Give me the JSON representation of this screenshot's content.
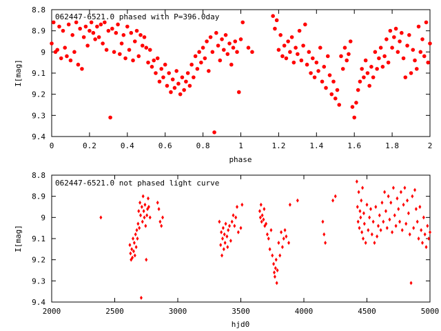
{
  "chart_data": [
    {
      "type": "scatter",
      "title": "062447-6521.0 phased with P=396.0day",
      "xlabel": "phase",
      "ylabel": "I[mag]",
      "xlim": [
        0,
        2
      ],
      "ylim": [
        9.4,
        8.8
      ],
      "y_inverted": true,
      "x_ticks": [
        "0",
        "0.2",
        "0.4",
        "0.6",
        "0.8",
        "1",
        "1.2",
        "1.4",
        "1.6",
        "1.8",
        "2"
      ],
      "y_ticks": [
        "8.8",
        "8.9",
        "9",
        "9.1",
        "9.2",
        "9.3",
        "9.4"
      ],
      "marker_color": "#ff0000",
      "grid": false,
      "points": [
        [
          0.0,
          8.96
        ],
        [
          0.01,
          8.86
        ],
        [
          0.02,
          9.0
        ],
        [
          0.03,
          8.99
        ],
        [
          0.04,
          8.88
        ],
        [
          0.05,
          9.03
        ],
        [
          0.06,
          8.9
        ],
        [
          0.07,
          8.98
        ],
        [
          0.08,
          9.02
        ],
        [
          0.09,
          8.87
        ],
        [
          0.1,
          9.04
        ],
        [
          0.11,
          8.92
        ],
        [
          0.12,
          9.0
        ],
        [
          0.13,
          8.86
        ],
        [
          0.14,
          9.06
        ],
        [
          0.15,
          8.89
        ],
        [
          0.16,
          9.08
        ],
        [
          0.17,
          8.93
        ],
        [
          0.18,
          8.88
        ],
        [
          0.19,
          8.97
        ],
        [
          0.2,
          8.9
        ],
        [
          0.21,
          8.86
        ],
        [
          0.22,
          8.91
        ],
        [
          0.23,
          8.94
        ],
        [
          0.24,
          8.88
        ],
        [
          0.25,
          8.93
        ],
        [
          0.26,
          8.87
        ],
        [
          0.27,
          8.96
        ],
        [
          0.28,
          8.86
        ],
        [
          0.29,
          8.99
        ],
        [
          0.3,
          8.9
        ],
        [
          0.31,
          9.31
        ],
        [
          0.32,
          8.89
        ],
        [
          0.33,
          9.0
        ],
        [
          0.34,
          8.91
        ],
        [
          0.35,
          8.87
        ],
        [
          0.36,
          9.01
        ],
        [
          0.37,
          8.96
        ],
        [
          0.38,
          8.92
        ],
        [
          0.39,
          9.03
        ],
        [
          0.4,
          8.88
        ],
        [
          0.41,
          8.99
        ],
        [
          0.42,
          8.91
        ],
        [
          0.43,
          9.04
        ],
        [
          0.44,
          8.95
        ],
        [
          0.45,
          8.9
        ],
        [
          0.46,
          9.02
        ],
        [
          0.47,
          8.92
        ],
        [
          0.48,
          8.97
        ],
        [
          0.49,
          8.93
        ],
        [
          0.5,
          8.98
        ],
        [
          0.51,
          9.05
        ],
        [
          0.52,
          8.99
        ],
        [
          0.53,
          9.07
        ],
        [
          0.54,
          9.04
        ],
        [
          0.55,
          9.1
        ],
        [
          0.56,
          9.03
        ],
        [
          0.57,
          9.14
        ],
        [
          0.58,
          9.08
        ],
        [
          0.59,
          9.12
        ],
        [
          0.6,
          9.06
        ],
        [
          0.61,
          9.16
        ],
        [
          0.62,
          9.1
        ],
        [
          0.63,
          9.19
        ],
        [
          0.64,
          9.13
        ],
        [
          0.65,
          9.17
        ],
        [
          0.66,
          9.09
        ],
        [
          0.67,
          9.15
        ],
        [
          0.68,
          9.2
        ],
        [
          0.69,
          9.12
        ],
        [
          0.7,
          9.18
        ],
        [
          0.71,
          9.14
        ],
        [
          0.72,
          9.1
        ],
        [
          0.73,
          9.16
        ],
        [
          0.74,
          9.06
        ],
        [
          0.75,
          9.12
        ],
        [
          0.76,
          9.02
        ],
        [
          0.77,
          9.08
        ],
        [
          0.78,
          9.0
        ],
        [
          0.79,
          9.05
        ],
        [
          0.8,
          8.98
        ],
        [
          0.81,
          9.03
        ],
        [
          0.82,
          8.95
        ],
        [
          0.83,
          9.09
        ],
        [
          0.84,
          8.93
        ],
        [
          0.85,
          9.0
        ],
        [
          0.86,
          9.38
        ],
        [
          0.87,
          8.91
        ],
        [
          0.88,
          8.97
        ],
        [
          0.89,
          9.04
        ],
        [
          0.9,
          8.94
        ],
        [
          0.91,
          8.99
        ],
        [
          0.92,
          8.92
        ],
        [
          0.93,
          9.01
        ],
        [
          0.94,
          8.96
        ],
        [
          0.95,
          9.06
        ],
        [
          0.96,
          8.98
        ],
        [
          0.97,
          8.95
        ],
        [
          0.98,
          9.0
        ],
        [
          0.99,
          9.19
        ],
        [
          1.0,
          8.94
        ],
        [
          1.01,
          8.86
        ],
        [
          1.04,
          8.98
        ],
        [
          1.06,
          9.0
        ],
        [
          1.17,
          8.83
        ],
        [
          1.18,
          8.89
        ],
        [
          1.19,
          8.85
        ],
        [
          1.2,
          8.99
        ],
        [
          1.21,
          8.92
        ],
        [
          1.22,
          9.02
        ],
        [
          1.23,
          8.97
        ],
        [
          1.24,
          9.03
        ],
        [
          1.25,
          8.95
        ],
        [
          1.26,
          9.0
        ],
        [
          1.27,
          8.93
        ],
        [
          1.28,
          9.05
        ],
        [
          1.29,
          8.98
        ],
        [
          1.3,
          9.01
        ],
        [
          1.31,
          8.9
        ],
        [
          1.32,
          9.04
        ],
        [
          1.33,
          8.97
        ],
        [
          1.34,
          8.87
        ],
        [
          1.35,
          9.06
        ],
        [
          1.36,
          9.0
        ],
        [
          1.37,
          9.1
        ],
        [
          1.38,
          9.03
        ],
        [
          1.39,
          9.12
        ],
        [
          1.4,
          9.05
        ],
        [
          1.41,
          9.09
        ],
        [
          1.42,
          8.98
        ],
        [
          1.43,
          9.14
        ],
        [
          1.44,
          9.07
        ],
        [
          1.45,
          9.17
        ],
        [
          1.46,
          9.02
        ],
        [
          1.47,
          9.11
        ],
        [
          1.48,
          9.2
        ],
        [
          1.49,
          9.14
        ],
        [
          1.5,
          9.22
        ],
        [
          1.51,
          9.18
        ],
        [
          1.52,
          9.25
        ],
        [
          1.53,
          9.02
        ],
        [
          1.54,
          9.08
        ],
        [
          1.55,
          8.98
        ],
        [
          1.56,
          9.04
        ],
        [
          1.57,
          9.01
        ],
        [
          1.58,
          8.95
        ],
        [
          1.59,
          9.26
        ],
        [
          1.6,
          9.31
        ],
        [
          1.61,
          9.24
        ],
        [
          1.62,
          9.18
        ],
        [
          1.63,
          9.14
        ],
        [
          1.64,
          9.08
        ],
        [
          1.65,
          9.12
        ],
        [
          1.66,
          9.04
        ],
        [
          1.67,
          9.1
        ],
        [
          1.68,
          9.16
        ],
        [
          1.69,
          9.07
        ],
        [
          1.7,
          9.12
        ],
        [
          1.71,
          9.0
        ],
        [
          1.72,
          9.08
        ],
        [
          1.73,
          9.03
        ],
        [
          1.74,
          8.98
        ],
        [
          1.75,
          9.07
        ],
        [
          1.76,
          9.02
        ],
        [
          1.77,
          8.94
        ],
        [
          1.78,
          9.05
        ],
        [
          1.79,
          8.9
        ],
        [
          1.8,
          8.98
        ],
        [
          1.81,
          8.93
        ],
        [
          1.82,
          8.89
        ],
        [
          1.83,
          9.0
        ],
        [
          1.84,
          8.95
        ],
        [
          1.85,
          8.91
        ],
        [
          1.86,
          9.03
        ],
        [
          1.87,
          9.12
        ],
        [
          1.88,
          8.97
        ],
        [
          1.89,
          8.92
        ],
        [
          1.9,
          9.1
        ],
        [
          1.91,
          8.99
        ],
        [
          1.92,
          9.04
        ],
        [
          1.93,
          9.08
        ],
        [
          1.94,
          8.88
        ],
        [
          1.95,
          9.0
        ],
        [
          1.96,
          8.94
        ],
        [
          1.97,
          9.02
        ],
        [
          1.98,
          8.86
        ],
        [
          1.99,
          9.05
        ],
        [
          2.0,
          8.96
        ]
      ]
    },
    {
      "type": "scatter",
      "title": "062447-6521.0 not phased light curve",
      "xlabel": "hjd0",
      "ylabel": "I[mag]",
      "xlim": [
        2000,
        5000
      ],
      "ylim": [
        9.4,
        8.8
      ],
      "y_inverted": true,
      "x_ticks": [
        "2000",
        "2500",
        "3000",
        "3500",
        "4000",
        "4500",
        "5000"
      ],
      "y_ticks": [
        "8.8",
        "8.9",
        "9",
        "9.1",
        "9.2",
        "9.3",
        "9.4"
      ],
      "marker_color": "#ff0000",
      "grid": false,
      "points": [
        [
          2390,
          9.0
        ],
        [
          2620,
          9.13
        ],
        [
          2625,
          9.17
        ],
        [
          2630,
          9.2
        ],
        [
          2635,
          9.15
        ],
        [
          2640,
          9.19
        ],
        [
          2645,
          9.1
        ],
        [
          2650,
          9.16
        ],
        [
          2655,
          9.12
        ],
        [
          2660,
          9.18
        ],
        [
          2665,
          9.08
        ],
        [
          2670,
          9.14
        ],
        [
          2675,
          9.06
        ],
        [
          2680,
          9.1
        ],
        [
          2685,
          9.03
        ],
        [
          2690,
          8.97
        ],
        [
          2695,
          9.05
        ],
        [
          2700,
          8.93
        ],
        [
          2705,
          8.99
        ],
        [
          2710,
          9.38
        ],
        [
          2715,
          8.95
        ],
        [
          2720,
          9.02
        ],
        [
          2725,
          8.9
        ],
        [
          2730,
          8.97
        ],
        [
          2735,
          9.0
        ],
        [
          2740,
          8.94
        ],
        [
          2745,
          9.04
        ],
        [
          2750,
          9.2
        ],
        [
          2755,
          8.99
        ],
        [
          2760,
          8.96
        ],
        [
          2765,
          8.91
        ],
        [
          2770,
          8.95
        ],
        [
          2780,
          9.0
        ],
        [
          2840,
          8.93
        ],
        [
          2850,
          8.96
        ],
        [
          2860,
          9.02
        ],
        [
          2870,
          9.04
        ],
        [
          2880,
          9.0
        ],
        [
          3330,
          9.02
        ],
        [
          3340,
          9.13
        ],
        [
          3345,
          9.07
        ],
        [
          3350,
          9.18
        ],
        [
          3355,
          9.1
        ],
        [
          3360,
          9.05
        ],
        [
          3365,
          9.15
        ],
        [
          3370,
          9.08
        ],
        [
          3375,
          9.12
        ],
        [
          3380,
          9.03
        ],
        [
          3390,
          9.09
        ],
        [
          3395,
          9.14
        ],
        [
          3400,
          9.06
        ],
        [
          3410,
          9.04
        ],
        [
          3420,
          9.11
        ],
        [
          3430,
          9.02
        ],
        [
          3440,
          8.99
        ],
        [
          3450,
          9.04
        ],
        [
          3460,
          9.0
        ],
        [
          3470,
          8.95
        ],
        [
          3480,
          9.07
        ],
        [
          3500,
          9.05
        ],
        [
          3510,
          8.94
        ],
        [
          3650,
          8.97
        ],
        [
          3655,
          9.0
        ],
        [
          3660,
          8.94
        ],
        [
          3665,
          9.02
        ],
        [
          3670,
          8.99
        ],
        [
          3680,
          9.01
        ],
        [
          3685,
          8.96
        ],
        [
          3690,
          9.04
        ],
        [
          3700,
          9.03
        ],
        [
          3710,
          9.08
        ],
        [
          3720,
          9.1
        ],
        [
          3730,
          9.15
        ],
        [
          3740,
          9.06
        ],
        [
          3750,
          9.18
        ],
        [
          3760,
          9.22
        ],
        [
          3765,
          9.26
        ],
        [
          3770,
          9.28
        ],
        [
          3775,
          9.24
        ],
        [
          3780,
          9.2
        ],
        [
          3785,
          9.31
        ],
        [
          3790,
          9.25
        ],
        [
          3800,
          9.12
        ],
        [
          3810,
          9.18
        ],
        [
          3820,
          9.07
        ],
        [
          3830,
          9.14
        ],
        [
          3840,
          9.1
        ],
        [
          3850,
          9.06
        ],
        [
          3860,
          9.09
        ],
        [
          3880,
          9.12
        ],
        [
          3890,
          8.94
        ],
        [
          3950,
          8.92
        ],
        [
          4150,
          9.02
        ],
        [
          4160,
          9.08
        ],
        [
          4170,
          9.12
        ],
        [
          4230,
          8.92
        ],
        [
          4250,
          8.9
        ],
        [
          4420,
          8.83
        ],
        [
          4425,
          8.95
        ],
        [
          4430,
          9.02
        ],
        [
          4435,
          8.88
        ],
        [
          4440,
          9.05
        ],
        [
          4445,
          8.97
        ],
        [
          4450,
          9.0
        ],
        [
          4455,
          8.92
        ],
        [
          4460,
          9.07
        ],
        [
          4465,
          8.86
        ],
        [
          4470,
          9.1
        ],
        [
          4475,
          8.98
        ],
        [
          4480,
          9.03
        ],
        [
          4490,
          9.12
        ],
        [
          4500,
          8.94
        ],
        [
          4510,
          9.06
        ],
        [
          4520,
          9.0
        ],
        [
          4530,
          8.96
        ],
        [
          4540,
          9.08
        ],
        [
          4550,
          9.02
        ],
        [
          4560,
          9.12
        ],
        [
          4570,
          8.95
        ],
        [
          4580,
          9.09
        ],
        [
          4590,
          9.04
        ],
        [
          4600,
          8.99
        ],
        [
          4610,
          9.06
        ],
        [
          4620,
          8.93
        ],
        [
          4630,
          9.02
        ],
        [
          4640,
          8.88
        ],
        [
          4650,
          8.97
        ],
        [
          4660,
          9.05
        ],
        [
          4670,
          8.9
        ],
        [
          4680,
          9.01
        ],
        [
          4690,
          8.93
        ],
        [
          4700,
          9.07
        ],
        [
          4710,
          8.86
        ],
        [
          4720,
          8.99
        ],
        [
          4730,
          9.04
        ],
        [
          4740,
          8.91
        ],
        [
          4750,
          8.96
        ],
        [
          4760,
          9.02
        ],
        [
          4770,
          8.88
        ],
        [
          4780,
          9.06
        ],
        [
          4790,
          8.94
        ],
        [
          4800,
          8.86
        ],
        [
          4810,
          9.03
        ],
        [
          4820,
          8.92
        ],
        [
          4830,
          8.98
        ],
        [
          4840,
          9.08
        ],
        [
          4850,
          9.31
        ],
        [
          4860,
          8.9
        ],
        [
          4870,
          9.05
        ],
        [
          4880,
          8.87
        ],
        [
          4890,
          8.96
        ],
        [
          4900,
          9.02
        ],
        [
          4910,
          9.1
        ],
        [
          4920,
          8.95
        ],
        [
          4930,
          9.06
        ],
        [
          4940,
          9.12
        ],
        [
          4950,
          9.0
        ],
        [
          4960,
          9.08
        ],
        [
          4970,
          9.14
        ],
        [
          4980,
          9.04
        ],
        [
          4990,
          9.1
        ],
        [
          5000,
          9.07
        ]
      ]
    }
  ]
}
